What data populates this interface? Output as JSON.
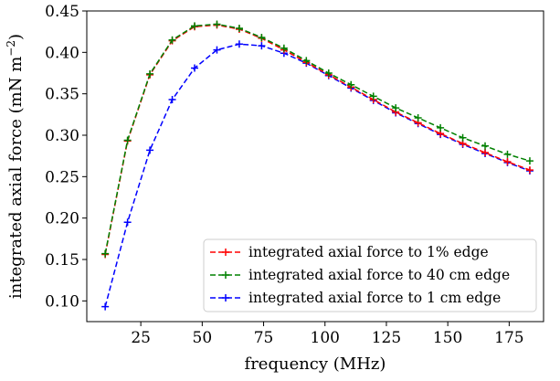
{
  "chart_data": {
    "type": "line",
    "xlabel": "frequency (MHz)",
    "ylabel_main": "integrated axial force (mN m",
    "ylabel_sup": "−2",
    "ylabel_close": ")",
    "xlim": [
      3,
      189
    ],
    "ylim": [
      0.075,
      0.45
    ],
    "xticks": [
      25,
      50,
      75,
      100,
      125,
      150,
      175
    ],
    "xtick_labels": [
      "25",
      "50",
      "75",
      "100",
      "125",
      "150",
      "175"
    ],
    "yticks": [
      0.1,
      0.15,
      0.2,
      0.25,
      0.3,
      0.35,
      0.4,
      0.45
    ],
    "ytick_labels": [
      "0.10",
      "0.15",
      "0.20",
      "0.25",
      "0.30",
      "0.35",
      "0.40",
      "0.45"
    ],
    "legend_position": "lower-right",
    "x": [
      10.5,
      19.6,
      28.7,
      37.8,
      46.9,
      56.0,
      65.1,
      74.2,
      83.3,
      92.4,
      101.5,
      110.6,
      119.7,
      128.8,
      137.9,
      147.0,
      156.1,
      165.2,
      174.3,
      183.4
    ],
    "series": [
      {
        "name": "integrated axial force to 1% edge",
        "color": "#ff0000",
        "values": [
          0.156,
          0.293,
          0.373,
          0.414,
          0.431,
          0.433,
          0.428,
          0.417,
          0.403,
          0.388,
          0.373,
          0.358,
          0.343,
          0.328,
          0.315,
          0.302,
          0.29,
          0.279,
          0.268,
          0.258
        ]
      },
      {
        "name": "integrated axial force to 40 cm edge",
        "color": "#008000",
        "values": [
          0.157,
          0.294,
          0.374,
          0.415,
          0.432,
          0.434,
          0.429,
          0.418,
          0.405,
          0.39,
          0.375,
          0.361,
          0.347,
          0.333,
          0.321,
          0.309,
          0.297,
          0.287,
          0.277,
          0.269
        ]
      },
      {
        "name": "integrated axial force to 1 cm edge",
        "color": "#0000ff",
        "values": [
          0.093,
          0.195,
          0.282,
          0.343,
          0.381,
          0.403,
          0.41,
          0.408,
          0.399,
          0.387,
          0.372,
          0.357,
          0.342,
          0.327,
          0.314,
          0.301,
          0.289,
          0.278,
          0.267,
          0.257
        ]
      }
    ]
  }
}
